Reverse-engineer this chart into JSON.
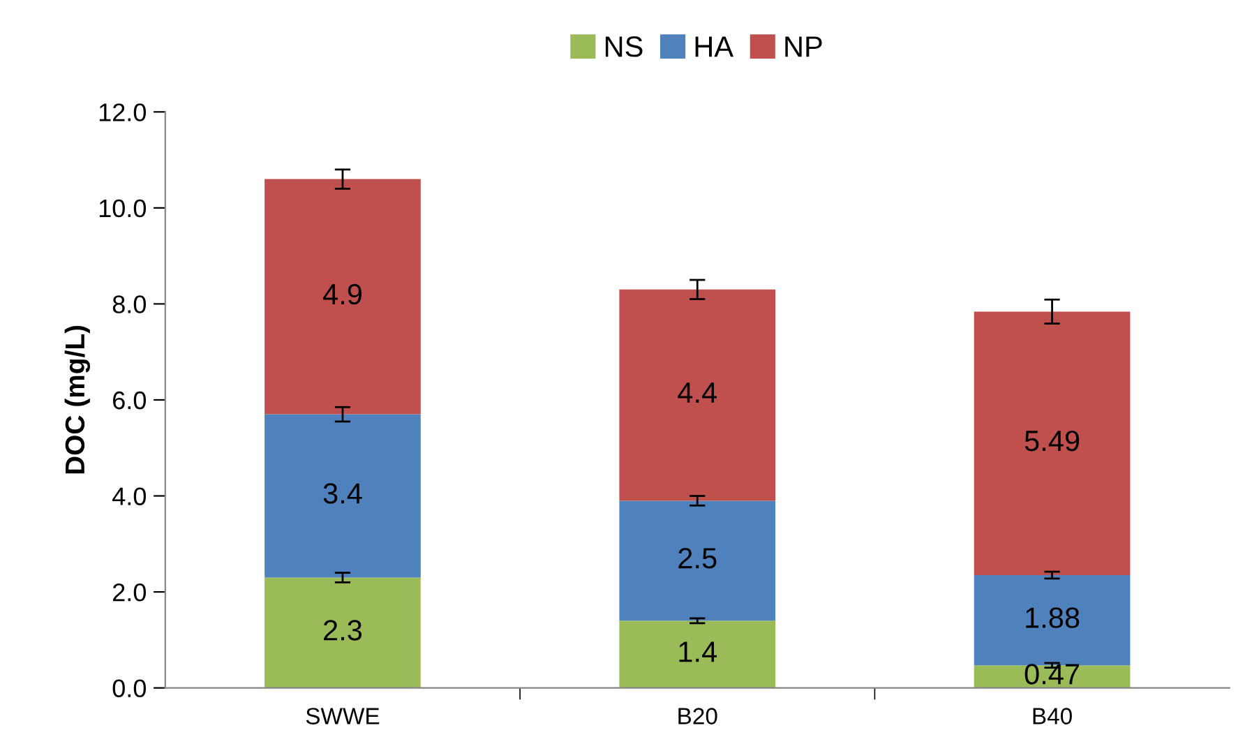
{
  "chart_data": {
    "type": "bar",
    "stacked": true,
    "ylabel": "DOC (mg/L)",
    "categories": [
      "SWWE",
      "B20",
      "B40"
    ],
    "series": [
      {
        "name": "NS",
        "color": "#9bbb59",
        "values": [
          2.3,
          1.4,
          0.47
        ],
        "errors": [
          0.1,
          0.05,
          0.05
        ]
      },
      {
        "name": "HA",
        "color": "#4f81bd",
        "values": [
          3.4,
          2.5,
          1.88
        ],
        "errors": [
          0.15,
          0.1,
          0.07
        ]
      },
      {
        "name": "NP",
        "color": "#c0504d",
        "values": [
          4.9,
          4.4,
          5.49
        ],
        "errors": [
          0.2,
          0.2,
          0.25
        ]
      }
    ],
    "ylim": [
      0,
      12
    ],
    "yticks": [
      {
        "value": 0,
        "label": "0.0"
      },
      {
        "value": 2,
        "label": "2.0"
      },
      {
        "value": 4,
        "label": "4.0"
      },
      {
        "value": 6,
        "label": "6.0"
      },
      {
        "value": 8,
        "label": "8.0"
      },
      {
        "value": 10,
        "label": "10.0"
      },
      {
        "value": 12,
        "label": "12.0"
      }
    ],
    "data_labels": true,
    "legend": "top",
    "grid": false
  }
}
